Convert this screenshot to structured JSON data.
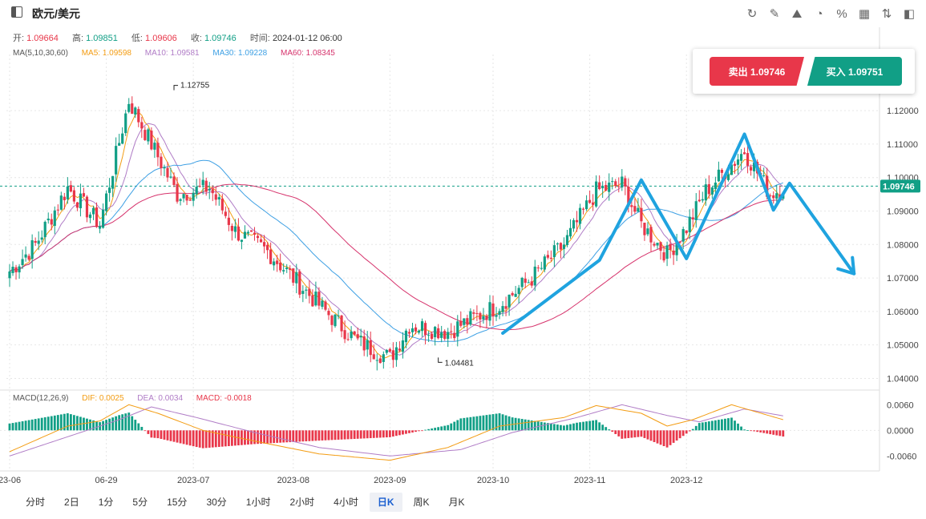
{
  "header": {
    "symbol": "欧元/美元",
    "icons": [
      "refresh-icon",
      "draw-icon",
      "compare-icon",
      "indicator-icon",
      "percent-icon",
      "layout-icon",
      "sort-icon",
      "panel-icon"
    ]
  },
  "ohlc": {
    "open_label": "开:",
    "open": "1.09664",
    "high_label": "高:",
    "high": "1.09851",
    "low_label": "低:",
    "low": "1.09606",
    "close_label": "收:",
    "close": "1.09746",
    "time_label": "时间:",
    "time": "2024-01-12 06:00"
  },
  "ma_legend": {
    "title": "MA(5,10,30,60)",
    "ma5_label": "MA5: 1.09598",
    "ma10_label": "MA10: 1.09581",
    "ma30_label": "MA30: 1.09228",
    "ma60_label": "MA60: 1.08345",
    "colors": {
      "ma5": "#f39c12",
      "ma10": "#b07cc6",
      "ma30": "#3ea0e4",
      "ma60": "#d6336c"
    }
  },
  "trade": {
    "sell_label": "卖出 1.09746",
    "buy_label": "买入 1.09751"
  },
  "macd_legend": {
    "title": "MACD(12,26,9)",
    "dif_label": "DIF: 0.0025",
    "dea_label": "DEA: 0.0034",
    "macd_label": "MACD: -0.0018"
  },
  "colors": {
    "up": "#119f86",
    "down": "#e8374a",
    "overlay": "#1fa3df",
    "price_line": "#119f86"
  },
  "periods": [
    {
      "label": "分时"
    },
    {
      "label": "2日"
    },
    {
      "label": "1分"
    },
    {
      "label": "5分"
    },
    {
      "label": "15分"
    },
    {
      "label": "30分"
    },
    {
      "label": "1小时"
    },
    {
      "label": "2小时"
    },
    {
      "label": "4小时"
    },
    {
      "label": "日K",
      "active": true
    },
    {
      "label": "周K"
    },
    {
      "label": "月K"
    }
  ],
  "chart_data": {
    "type": "candlestick",
    "y_ticks": [
      "1.12000",
      "1.11000",
      "1.10000",
      "1.09000",
      "1.08000",
      "1.07000",
      "1.06000",
      "1.05000",
      "1.04000"
    ],
    "ylim": [
      1.037,
      1.132
    ],
    "x_ticks": [
      "23-06",
      "06-29",
      "2023-07",
      "2023-08",
      "2023-09",
      "2023-10",
      "2023-11",
      "2023-12"
    ],
    "current_price": "1.09746",
    "annotations": [
      {
        "text": "1.12755",
        "value": 1.12755
      },
      {
        "text": "1.04481",
        "value": 1.04481
      }
    ],
    "close_anchors": [
      [
        0,
        1.072
      ],
      [
        8,
        1.08
      ],
      [
        18,
        1.097
      ],
      [
        28,
        1.086
      ],
      [
        37,
        1.123
      ],
      [
        44,
        1.11
      ],
      [
        52,
        1.095
      ],
      [
        62,
        1.097
      ],
      [
        70,
        1.084
      ],
      [
        80,
        1.078
      ],
      [
        88,
        1.07
      ],
      [
        98,
        1.06
      ],
      [
        108,
        1.051
      ],
      [
        118,
        1.046
      ],
      [
        124,
        1.056
      ],
      [
        136,
        1.054
      ],
      [
        152,
        1.062
      ],
      [
        162,
        1.07
      ],
      [
        172,
        1.08
      ],
      [
        182,
        1.096
      ],
      [
        190,
        1.098
      ],
      [
        196,
        1.086
      ],
      [
        204,
        1.077
      ],
      [
        210,
        1.085
      ],
      [
        216,
        1.096
      ],
      [
        228,
        1.108
      ],
      [
        236,
        1.095
      ],
      [
        240,
        1.097
      ]
    ],
    "macd_ticks": [
      "0.0060",
      "0.0000",
      "-0.0060"
    ],
    "macd_ylim": [
      -0.0095,
      0.0085
    ],
    "dif_anchors": [
      [
        0,
        -0.005
      ],
      [
        18,
        0.001
      ],
      [
        28,
        0.0022
      ],
      [
        37,
        0.006
      ],
      [
        46,
        0.004
      ],
      [
        60,
        0.0
      ],
      [
        76,
        -0.0025
      ],
      [
        96,
        -0.0055
      ],
      [
        118,
        -0.007
      ],
      [
        136,
        -0.004
      ],
      [
        152,
        0.001
      ],
      [
        172,
        0.003
      ],
      [
        182,
        0.0058
      ],
      [
        196,
        0.004
      ],
      [
        204,
        0.001
      ],
      [
        212,
        0.0025
      ],
      [
        224,
        0.006
      ],
      [
        240,
        0.0025
      ]
    ],
    "dea_anchors": [
      [
        0,
        -0.006
      ],
      [
        20,
        -0.001
      ],
      [
        34,
        0.0025
      ],
      [
        44,
        0.0055
      ],
      [
        58,
        0.003
      ],
      [
        76,
        -0.0005
      ],
      [
        96,
        -0.004
      ],
      [
        118,
        -0.006
      ],
      [
        140,
        -0.0045
      ],
      [
        156,
        -0.0005
      ],
      [
        176,
        0.003
      ],
      [
        190,
        0.006
      ],
      [
        204,
        0.0035
      ],
      [
        214,
        0.002
      ],
      [
        228,
        0.005
      ],
      [
        240,
        0.0034
      ]
    ],
    "overlay_path": [
      [
        153,
        1.0535
      ],
      [
        183,
        1.0753
      ],
      [
        196,
        1.0993
      ],
      [
        210,
        1.0758
      ],
      [
        228,
        1.113
      ],
      [
        237,
        1.0903
      ],
      [
        242,
        1.0983
      ],
      [
        262,
        1.0713
      ]
    ]
  }
}
